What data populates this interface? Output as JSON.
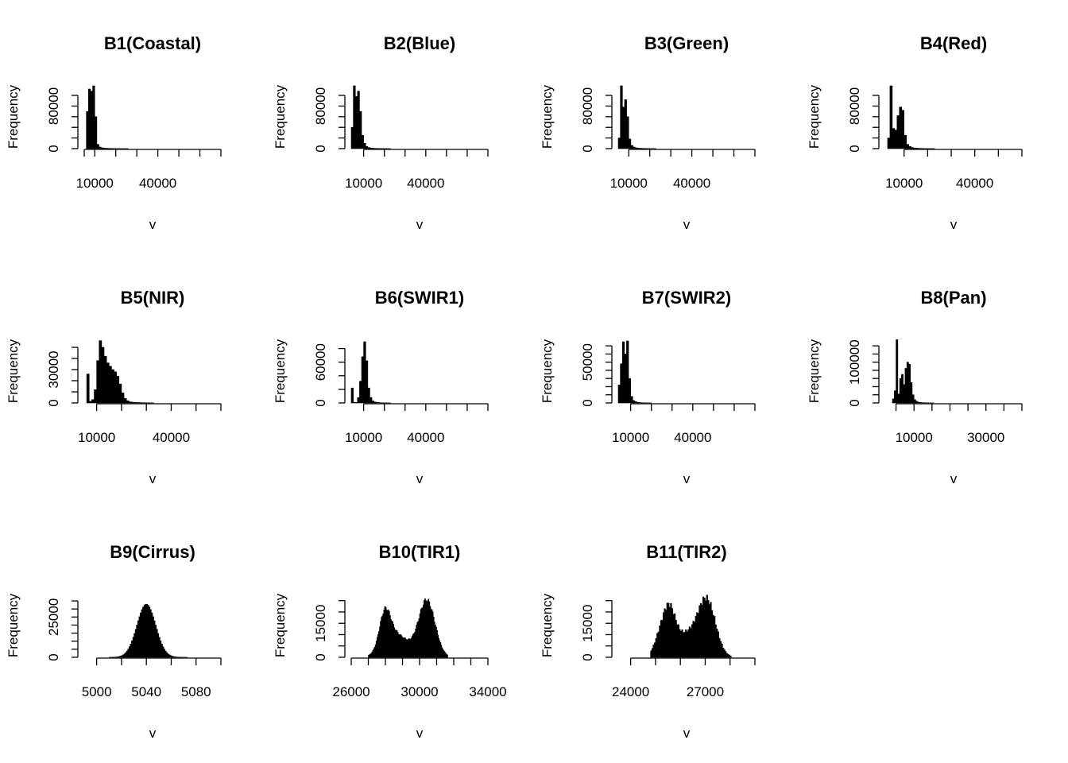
{
  "chart_data": [
    {
      "type": "histogram",
      "title": "B1(Coastal)",
      "xlabel": "v",
      "ylabel": "Frequency",
      "xlim": [
        5000,
        70000
      ],
      "x_ticks": [
        5000,
        10000,
        20000,
        30000,
        40000,
        50000,
        60000,
        70000
      ],
      "x_tick_labels": [
        "",
        "10000",
        "",
        "",
        "40000",
        "",
        "",
        ""
      ],
      "ylim": [
        0,
        115000
      ],
      "y_ticks": [
        0,
        20000,
        40000,
        60000,
        80000,
        100000
      ],
      "y_tick_labels": [
        "0",
        "",
        "",
        "",
        "80000",
        ""
      ],
      "bin_width": 1000,
      "bins": [
        [
          6000,
          70000
        ],
        [
          7000,
          112000
        ],
        [
          8000,
          108000
        ],
        [
          9000,
          118000
        ],
        [
          10000,
          60000
        ],
        [
          11000,
          8000
        ],
        [
          12000,
          3000
        ],
        [
          13000,
          1500
        ],
        [
          14000,
          1000
        ],
        [
          15000,
          700
        ],
        [
          16000,
          500
        ],
        [
          17000,
          400
        ],
        [
          18000,
          300
        ],
        [
          19000,
          250
        ],
        [
          20000,
          200
        ],
        [
          21000,
          150
        ],
        [
          22000,
          120
        ],
        [
          23000,
          100
        ],
        [
          24000,
          80
        ],
        [
          25000,
          60
        ]
      ]
    },
    {
      "type": "histogram",
      "title": "B2(Blue)",
      "xlabel": "v",
      "ylabel": "Frequency",
      "xlim": [
        4000,
        70000
      ],
      "x_ticks": [
        10000,
        20000,
        30000,
        40000,
        50000,
        60000,
        70000
      ],
      "x_tick_labels": [
        "10000",
        "",
        "",
        "40000",
        "",
        "",
        ""
      ],
      "ylim": [
        0,
        115000
      ],
      "y_ticks": [
        0,
        20000,
        40000,
        60000,
        80000,
        100000
      ],
      "y_tick_labels": [
        "0",
        "",
        "",
        "",
        "80000",
        ""
      ],
      "bin_width": 1000,
      "bins": [
        [
          4000,
          40000
        ],
        [
          5000,
          118000
        ],
        [
          6000,
          98000
        ],
        [
          7000,
          108000
        ],
        [
          8000,
          70000
        ],
        [
          9000,
          25000
        ],
        [
          10000,
          10000
        ],
        [
          11000,
          4000
        ],
        [
          12000,
          2000
        ],
        [
          13000,
          1200
        ],
        [
          14000,
          800
        ],
        [
          15000,
          500
        ],
        [
          16000,
          400
        ],
        [
          17000,
          300
        ],
        [
          18000,
          250
        ],
        [
          19000,
          200
        ],
        [
          20000,
          150
        ],
        [
          21000,
          120
        ],
        [
          22000,
          100
        ]
      ]
    },
    {
      "type": "histogram",
      "title": "B3(Green)",
      "xlabel": "v",
      "ylabel": "Frequency",
      "xlim": [
        5000,
        70000
      ],
      "x_ticks": [
        10000,
        20000,
        30000,
        40000,
        50000,
        60000,
        70000
      ],
      "x_tick_labels": [
        "10000",
        "",
        "",
        "40000",
        "",
        "",
        ""
      ],
      "ylim": [
        0,
        115000
      ],
      "y_ticks": [
        0,
        20000,
        40000,
        60000,
        80000,
        100000
      ],
      "y_tick_labels": [
        "0",
        "",
        "",
        "",
        "80000",
        ""
      ],
      "bin_width": 1000,
      "bins": [
        [
          5000,
          20000
        ],
        [
          6000,
          118000
        ],
        [
          7000,
          78000
        ],
        [
          8000,
          92000
        ],
        [
          9000,
          60000
        ],
        [
          10000,
          18000
        ],
        [
          11000,
          6000
        ],
        [
          12000,
          3000
        ],
        [
          13000,
          1500
        ],
        [
          14000,
          1000
        ],
        [
          15000,
          700
        ],
        [
          16000,
          500
        ],
        [
          17000,
          400
        ],
        [
          18000,
          300
        ],
        [
          19000,
          250
        ],
        [
          20000,
          200
        ],
        [
          21000,
          150
        ],
        [
          22000,
          120
        ]
      ]
    },
    {
      "type": "histogram",
      "title": "B4(Red)",
      "xlabel": "v",
      "ylabel": "Frequency",
      "xlim": [
        2000,
        60000
      ],
      "x_ticks": [
        10000,
        20000,
        30000,
        40000,
        50000,
        60000
      ],
      "x_tick_labels": [
        "10000",
        "",
        "",
        "40000",
        "",
        ""
      ],
      "ylim": [
        0,
        115000
      ],
      "y_ticks": [
        0,
        20000,
        40000,
        60000,
        80000,
        100000
      ],
      "y_tick_labels": [
        "0",
        "",
        "",
        "",
        "80000",
        ""
      ],
      "bin_width": 1000,
      "bins": [
        [
          3000,
          20000
        ],
        [
          4000,
          118000
        ],
        [
          5000,
          38000
        ],
        [
          6000,
          35000
        ],
        [
          7000,
          62000
        ],
        [
          8000,
          78000
        ],
        [
          9000,
          72000
        ],
        [
          10000,
          25000
        ],
        [
          11000,
          8000
        ],
        [
          12000,
          4000
        ],
        [
          13000,
          2000
        ],
        [
          14000,
          1200
        ],
        [
          15000,
          800
        ],
        [
          16000,
          600
        ],
        [
          17000,
          400
        ],
        [
          18000,
          300
        ],
        [
          19000,
          250
        ],
        [
          20000,
          200
        ],
        [
          21000,
          150
        ],
        [
          22000,
          120
        ]
      ]
    },
    {
      "type": "histogram",
      "title": "B5(NIR)",
      "xlabel": "v",
      "ylabel": "Frequency",
      "xlim": [
        5000,
        60000
      ],
      "x_ticks": [
        10000,
        20000,
        30000,
        40000,
        50000,
        60000
      ],
      "x_tick_labels": [
        "10000",
        "",
        "",
        "40000",
        "",
        ""
      ],
      "ylim": [
        0,
        55000
      ],
      "y_ticks": [
        0,
        10000,
        20000,
        30000,
        40000,
        50000
      ],
      "y_tick_labels": [
        "0",
        "",
        "",
        "30000",
        "",
        ""
      ],
      "bin_width": 1000,
      "bins": [
        [
          6000,
          26000
        ],
        [
          7000,
          1500
        ],
        [
          8000,
          3000
        ],
        [
          9000,
          12000
        ],
        [
          10000,
          38000
        ],
        [
          11000,
          56000
        ],
        [
          12000,
          50000
        ],
        [
          13000,
          42000
        ],
        [
          14000,
          36000
        ],
        [
          15000,
          33000
        ],
        [
          16000,
          30000
        ],
        [
          17000,
          28000
        ],
        [
          18000,
          24000
        ],
        [
          19000,
          17000
        ],
        [
          20000,
          9000
        ],
        [
          21000,
          4000
        ],
        [
          22000,
          2000
        ],
        [
          23000,
          1000
        ],
        [
          24000,
          700
        ],
        [
          25000,
          500
        ],
        [
          26000,
          400
        ],
        [
          27000,
          300
        ],
        [
          28000,
          250
        ],
        [
          29000,
          200
        ],
        [
          30000,
          150
        ],
        [
          31000,
          120
        ],
        [
          32000,
          100
        ]
      ]
    },
    {
      "type": "histogram",
      "title": "B6(SWIR1)",
      "xlabel": "v",
      "ylabel": "Frequency",
      "xlim": [
        4000,
        70000
      ],
      "x_ticks": [
        10000,
        20000,
        30000,
        40000,
        50000,
        60000,
        70000
      ],
      "x_tick_labels": [
        "10000",
        "",
        "",
        "40000",
        "",
        "",
        ""
      ],
      "ylim": [
        0,
        90000
      ],
      "y_ticks": [
        0,
        20000,
        40000,
        60000,
        80000
      ],
      "y_tick_labels": [
        "0",
        "",
        "",
        "60000",
        ""
      ],
      "bin_width": 1000,
      "bins": [
        [
          4000,
          22000
        ],
        [
          5000,
          1000
        ],
        [
          6000,
          800
        ],
        [
          7000,
          8000
        ],
        [
          8000,
          32000
        ],
        [
          9000,
          68000
        ],
        [
          10000,
          90000
        ],
        [
          11000,
          62000
        ],
        [
          12000,
          22000
        ],
        [
          13000,
          8000
        ],
        [
          14000,
          3000
        ],
        [
          15000,
          1500
        ],
        [
          16000,
          800
        ],
        [
          17000,
          500
        ],
        [
          18000,
          300
        ],
        [
          19000,
          200
        ],
        [
          20000,
          150
        ],
        [
          21000,
          120
        ],
        [
          22000,
          100
        ]
      ]
    },
    {
      "type": "histogram",
      "title": "B7(SWIR2)",
      "xlabel": "v",
      "ylabel": "Frequency",
      "xlim": [
        4000,
        70000
      ],
      "x_ticks": [
        10000,
        20000,
        30000,
        40000,
        50000,
        60000,
        70000
      ],
      "x_tick_labels": [
        "10000",
        "",
        "",
        "40000",
        "",
        "",
        ""
      ],
      "ylim": [
        0,
        75000
      ],
      "y_ticks": [
        0,
        10000,
        20000,
        30000,
        40000,
        50000,
        60000,
        70000
      ],
      "y_tick_labels": [
        "0",
        "",
        "",
        "",
        "",
        "50000",
        "",
        ""
      ],
      "bin_width": 1000,
      "bins": [
        [
          4000,
          22000
        ],
        [
          5000,
          48000
        ],
        [
          6000,
          75000
        ],
        [
          7000,
          60000
        ],
        [
          8000,
          76000
        ],
        [
          9000,
          30000
        ],
        [
          10000,
          8000
        ],
        [
          11000,
          3000
        ],
        [
          12000,
          1500
        ],
        [
          13000,
          800
        ],
        [
          14000,
          500
        ],
        [
          15000,
          300
        ],
        [
          16000,
          200
        ],
        [
          17000,
          150
        ],
        [
          18000,
          120
        ],
        [
          19000,
          100
        ]
      ]
    },
    {
      "type": "histogram",
      "title": "B8(Pan)",
      "xlabel": "v",
      "ylabel": "Frequency",
      "xlim": [
        2000,
        40000
      ],
      "x_ticks": [
        5000,
        10000,
        15000,
        20000,
        25000,
        30000,
        35000,
        40000
      ],
      "x_tick_labels": [
        "",
        "10000",
        "",
        "",
        "",
        "30000",
        "",
        ""
      ],
      "ylim": [
        0,
        150000
      ],
      "y_ticks": [
        0,
        20000,
        40000,
        60000,
        80000,
        100000,
        120000,
        140000
      ],
      "y_tick_labels": [
        "0",
        "",
        "",
        "",
        "",
        "100000",
        "",
        ""
      ],
      "bin_width": 500,
      "bins": [
        [
          4000,
          10000
        ],
        [
          4500,
          30000
        ],
        [
          5000,
          155000
        ],
        [
          5500,
          22000
        ],
        [
          6000,
          60000
        ],
        [
          6500,
          70000
        ],
        [
          7000,
          45000
        ],
        [
          7500,
          85000
        ],
        [
          8000,
          100000
        ],
        [
          8500,
          95000
        ],
        [
          9000,
          50000
        ],
        [
          9500,
          20000
        ],
        [
          10000,
          8000
        ],
        [
          10500,
          4000
        ],
        [
          11000,
          2000
        ],
        [
          11500,
          1200
        ],
        [
          12000,
          800
        ],
        [
          12500,
          600
        ],
        [
          13000,
          400
        ],
        [
          13500,
          300
        ],
        [
          14000,
          250
        ],
        [
          14500,
          200
        ],
        [
          15000,
          150
        ]
      ]
    },
    {
      "type": "histogram",
      "title": "B9(Cirrus)",
      "xlabel": "v",
      "ylabel": "Frequency",
      "xlim": [
        4990,
        5100
      ],
      "x_ticks": [
        5000,
        5020,
        5040,
        5060,
        5080,
        5100
      ],
      "x_tick_labels": [
        "5000",
        "",
        "5040",
        "",
        "5080",
        ""
      ],
      "ylim": [
        0,
        38000
      ],
      "y_ticks": [
        0,
        5000,
        10000,
        15000,
        20000,
        25000,
        30000,
        35000
      ],
      "y_tick_labels": [
        "0",
        "",
        "",
        "",
        "",
        "25000",
        "",
        ""
      ],
      "bin_width": 1,
      "bins": "gaussian"
    },
    {
      "type": "histogram",
      "title": "B10(TIR1)",
      "xlabel": "v",
      "ylabel": "Frequency",
      "xlim": [
        26000,
        34000
      ],
      "x_ticks": [
        26000,
        27000,
        28000,
        29000,
        30000,
        31000,
        32000,
        33000,
        34000
      ],
      "x_tick_labels": [
        "26000",
        "",
        "",
        "",
        "30000",
        "",
        "",
        "",
        "34000"
      ],
      "ylim": [
        0,
        27000
      ],
      "y_ticks": [
        0,
        5000,
        10000,
        15000,
        20000,
        25000
      ],
      "y_tick_labels": [
        "0",
        "",
        "",
        "15000",
        "",
        ""
      ],
      "bin_width": 50,
      "bins": "bimodal"
    },
    {
      "type": "histogram",
      "title": "B11(TIR2)",
      "xlabel": "v",
      "ylabel": "Frequency",
      "xlim": [
        23500,
        29000
      ],
      "x_ticks": [
        24000,
        25000,
        26000,
        27000,
        28000,
        29000
      ],
      "x_tick_labels": [
        "24000",
        "",
        "",
        "27000",
        "",
        ""
      ],
      "ylim": [
        0,
        27000
      ],
      "y_ticks": [
        0,
        5000,
        10000,
        15000,
        20000,
        25000
      ],
      "y_tick_labels": [
        "0",
        "",
        "",
        "15000",
        "",
        ""
      ],
      "bin_width": 50,
      "bins": "bimodal2"
    }
  ]
}
